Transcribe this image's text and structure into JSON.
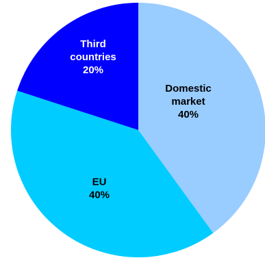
{
  "chart_data": {
    "type": "pie",
    "slices": [
      {
        "label_lines": [
          "Domestic",
          "market",
          "40%"
        ],
        "value": 40,
        "color": "#99CCFF",
        "text_color": "#000000"
      },
      {
        "label_lines": [
          "EU",
          "40%"
        ],
        "value": 40,
        "color": "#00CCFF",
        "text_color": "#000000"
      },
      {
        "label_lines": [
          "Third",
          "countries",
          "20%"
        ],
        "value": 20,
        "color": "#0000FF",
        "text_color": "#FFFFFF"
      }
    ],
    "start": "12 o'clock",
    "direction": "clockwise",
    "legend": "none"
  }
}
